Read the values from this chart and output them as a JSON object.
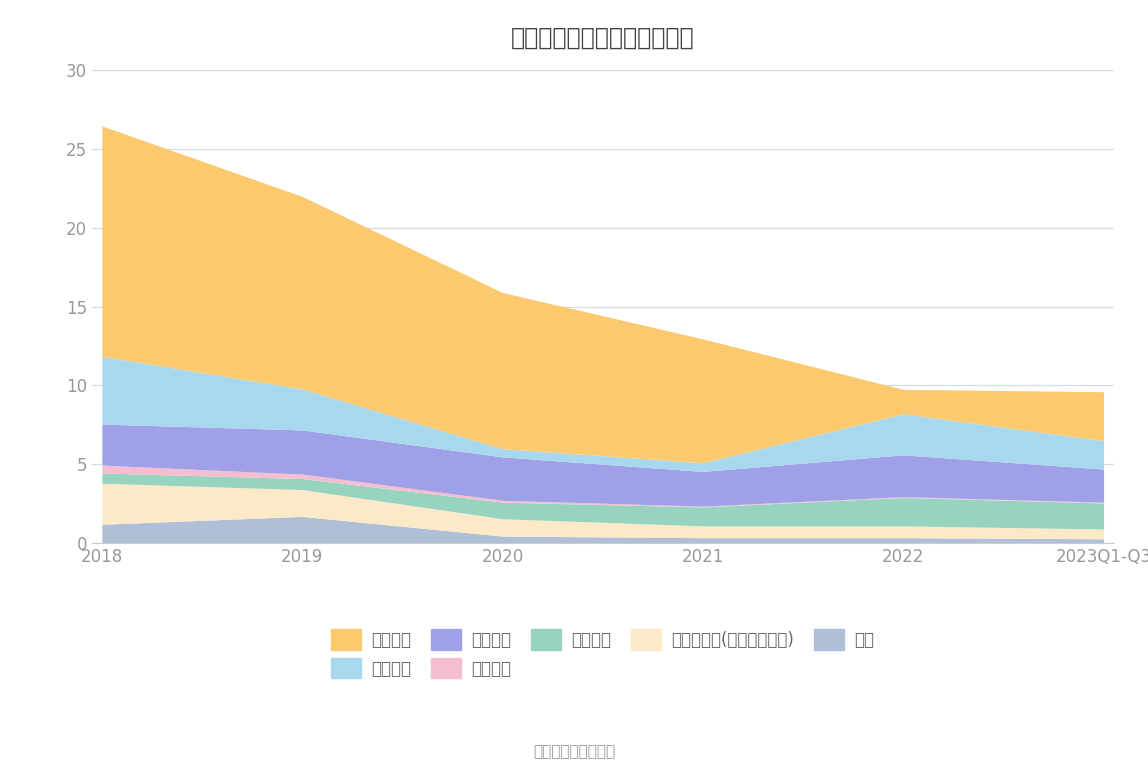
{
  "title": "历年主要负债堆积图（亿元）",
  "source": "数据来源：恒生聚源",
  "x_labels": [
    "2018",
    "2019",
    "2020",
    "2021",
    "2022",
    "2023Q1-Q3"
  ],
  "x_positions": [
    0,
    1,
    2,
    3,
    4,
    5
  ],
  "series": [
    {
      "name": "其它",
      "color": "#b0bfd8",
      "values": [
        1.2,
        1.7,
        0.45,
        0.35,
        0.35,
        0.28
      ]
    },
    {
      "name": "其他应付款(含利息和股利)",
      "color": "#fde8c8",
      "values": [
        2.6,
        1.7,
        1.1,
        0.75,
        0.75,
        0.62
      ]
    },
    {
      "name": "合同负债",
      "color": "#96d4c0",
      "values": [
        0.65,
        0.7,
        1.05,
        1.2,
        1.8,
        1.65
      ]
    },
    {
      "name": "预收款项",
      "color": "#f5bece",
      "values": [
        0.5,
        0.28,
        0.12,
        0.05,
        0.05,
        0.05
      ]
    },
    {
      "name": "应付账款",
      "color": "#a0a0e8",
      "values": [
        2.6,
        2.8,
        2.75,
        2.2,
        2.65,
        2.1
      ]
    },
    {
      "name": "应付票据",
      "color": "#a8d8ee",
      "values": [
        4.3,
        2.6,
        0.52,
        0.55,
        2.6,
        1.8
      ]
    },
    {
      "name": "短期借款",
      "color": "#fcc96e",
      "values": [
        14.6,
        12.2,
        9.9,
        7.85,
        1.55,
        3.1
      ]
    }
  ],
  "ylim": [
    0,
    30
  ],
  "yticks": [
    0,
    5,
    10,
    15,
    20,
    25,
    30
  ],
  "bg_color": "#ffffff",
  "grid_color": "#d4dce8",
  "title_fontsize": 17,
  "tick_fontsize": 12,
  "legend_fontsize": 12,
  "legend_order": [
    6,
    5,
    4,
    3,
    2,
    1,
    0
  ]
}
